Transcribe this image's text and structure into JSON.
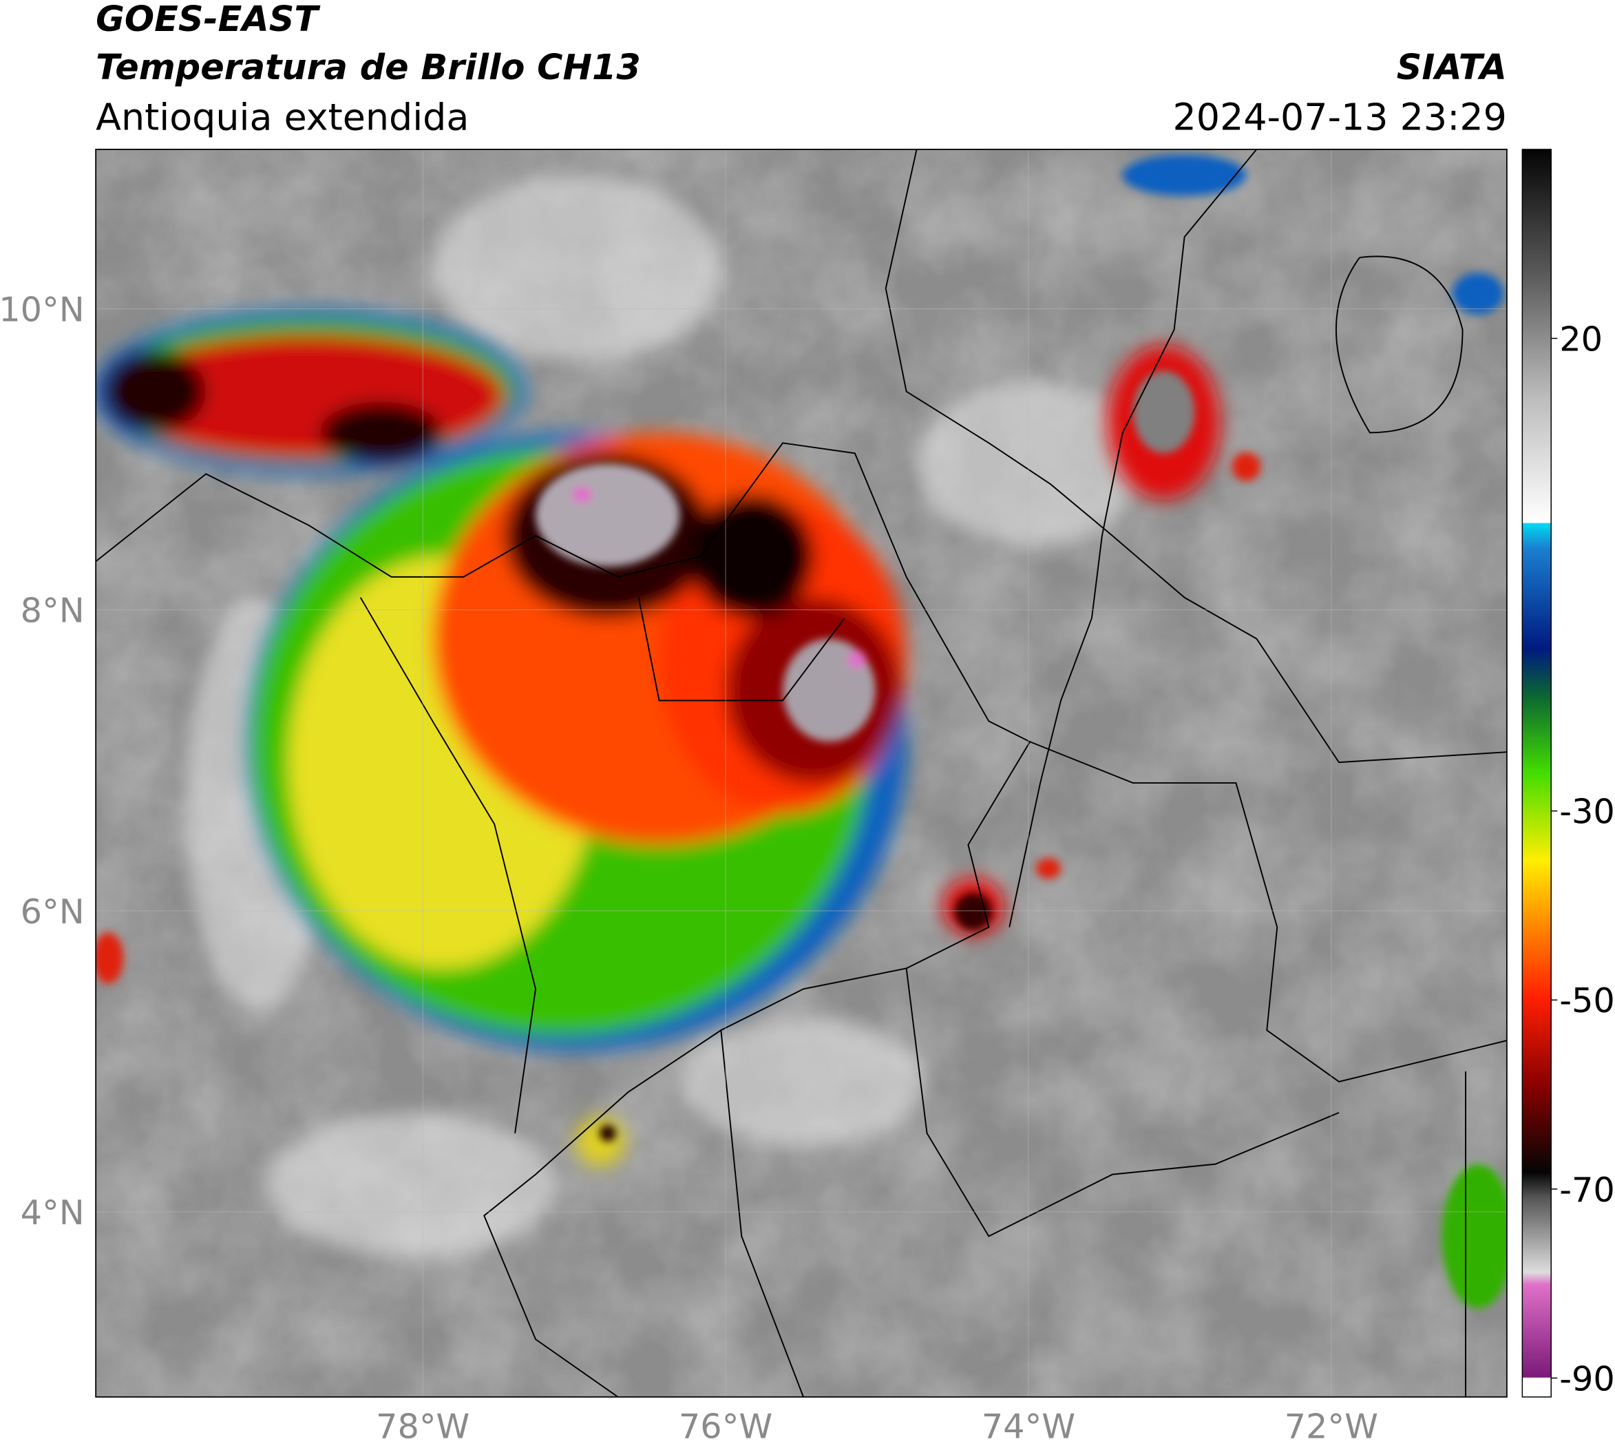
{
  "header": {
    "satellite": "GOES-EAST",
    "product": "Temperatura de Brillo CH13",
    "region": "Antioquia extendida",
    "source": "SIATA",
    "datetime": "2024-07-13 23:29"
  },
  "map": {
    "xlim": [
      -80.16,
      -70.84
    ],
    "ylim": [
      2.77,
      11.06
    ],
    "xticks": [
      {
        "value": -78,
        "label": "78°W"
      },
      {
        "value": -76,
        "label": "76°W"
      },
      {
        "value": -74,
        "label": "74°W"
      },
      {
        "value": -72,
        "label": "72°W"
      }
    ],
    "yticks": [
      {
        "value": 4,
        "label": "4°N"
      },
      {
        "value": 6,
        "label": "6°N"
      },
      {
        "value": 8,
        "label": "8°N"
      },
      {
        "value": 10,
        "label": "10°N"
      }
    ],
    "grid": true
  },
  "colorbar": {
    "clim": [
      -92,
      40
    ],
    "ticks": [
      20,
      -30,
      -50,
      -70,
      -90
    ]
  }
}
